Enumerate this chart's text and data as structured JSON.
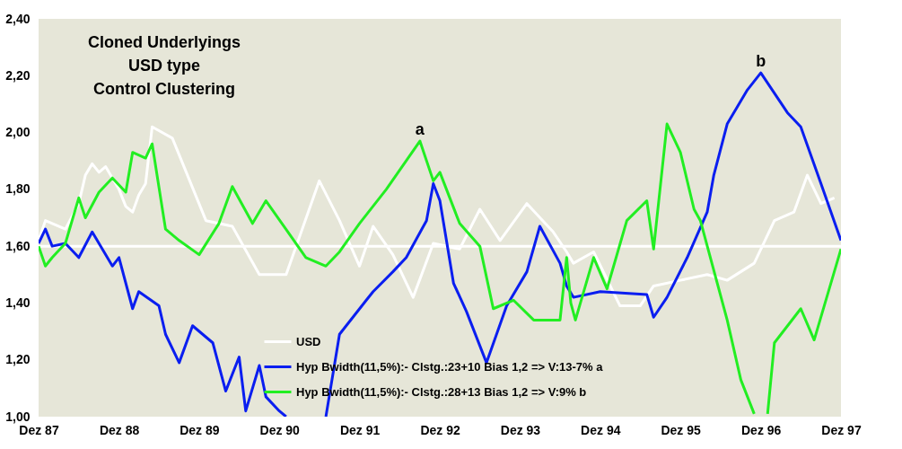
{
  "chart_data": {
    "type": "line",
    "title": "Cloned Underlyings\nUSD type\nControl Clustering",
    "xlim": [
      "1987-12",
      "1997-12"
    ],
    "xticks": [
      {
        "value": "1987-12",
        "label": "Dez 87"
      },
      {
        "value": "1988-12",
        "label": "Dez 88"
      },
      {
        "value": "1989-12",
        "label": "Dez 89"
      },
      {
        "value": "1990-12",
        "label": "Dez 90"
      },
      {
        "value": "1991-12",
        "label": "Dez 91"
      },
      {
        "value": "1992-12",
        "label": "Dez 92"
      },
      {
        "value": "1993-12",
        "label": "Dez 93"
      },
      {
        "value": "1994-12",
        "label": "Dez 94"
      },
      {
        "value": "1995-12",
        "label": "Dez 95"
      },
      {
        "value": "1996-12",
        "label": "Dez 96"
      },
      {
        "value": "1997-12",
        "label": "Dez 97"
      }
    ],
    "ylim": [
      1.0,
      2.4
    ],
    "yticks": [
      {
        "value": 1.0,
        "label": "1,00"
      },
      {
        "value": 1.2,
        "label": "1,20"
      },
      {
        "value": 1.4,
        "label": "1,40"
      },
      {
        "value": 1.6,
        "label": "1,60"
      },
      {
        "value": 1.8,
        "label": "1,80"
      },
      {
        "value": 2.0,
        "label": "2,00"
      },
      {
        "value": 2.2,
        "label": "2,20"
      },
      {
        "value": 2.4,
        "label": "2,40"
      }
    ],
    "grid": false,
    "legend": "bottom",
    "line_style": "solid",
    "marker": "none",
    "ref_lines": [
      {
        "axis": "y",
        "value": 1.6,
        "color": "#ffffff"
      }
    ],
    "annotations": [
      {
        "text": "a",
        "x": "1992-09",
        "y": 1.97
      },
      {
        "text": "b",
        "x": "1996-12",
        "y": 2.21
      }
    ],
    "series": [
      {
        "name": "USD",
        "color": "#ffffff",
        "x": [
          "1987-12",
          "1988-01",
          "1988-04",
          "1988-06",
          "1988-07",
          "1988-08",
          "1988-09",
          "1988-10",
          "1988-12",
          "1989-01",
          "1989-02",
          "1989-03",
          "1989-04",
          "1989-05",
          "1989-08",
          "1990-01",
          "1990-05",
          "1990-09",
          "1990-12",
          "1991-01",
          "1991-06",
          "1991-09",
          "1991-12",
          "1992-02",
          "1992-05",
          "1992-08",
          "1992-11",
          "1993-03",
          "1993-06",
          "1993-09",
          "1994-01",
          "1994-05",
          "1994-07",
          "1994-08",
          "1994-11",
          "1995-03",
          "1995-06",
          "1995-08",
          "1995-12",
          "1996-04",
          "1996-07",
          "1996-11",
          "1997-02",
          "1997-05",
          "1997-07",
          "1997-09",
          "1997-11"
        ],
        "values": [
          1.62,
          1.69,
          1.66,
          1.75,
          1.85,
          1.89,
          1.86,
          1.88,
          1.8,
          1.74,
          1.72,
          1.78,
          1.82,
          2.02,
          1.98,
          1.69,
          1.67,
          1.5,
          1.5,
          1.5,
          1.83,
          1.69,
          1.53,
          1.67,
          1.57,
          1.42,
          1.61,
          1.59,
          1.73,
          1.62,
          1.75,
          1.65,
          1.58,
          1.54,
          1.58,
          1.39,
          1.39,
          1.46,
          1.48,
          1.5,
          1.48,
          1.54,
          1.69,
          1.72,
          1.85,
          1.75,
          1.77
        ]
      },
      {
        "name": "Hyp Bwidth(11,5%):- Clstg.:23+10 Bias 1,2 => V:13-7% a",
        "color": "#0a1ef0",
        "x": [
          "1987-12",
          "1988-01",
          "1988-02",
          "1988-04",
          "1988-06",
          "1988-08",
          "1988-11",
          "1988-12",
          "1989-02",
          "1989-03",
          "1989-06",
          "1989-07",
          "1989-09",
          "1989-11",
          "1990-02",
          "1990-04",
          "1990-06",
          "1990-07",
          "1990-09",
          "1990-10",
          "1990-12",
          "1991-01",
          "1991-04",
          "1991-07",
          "1991-09",
          "1992-01",
          "1992-02",
          "1992-05",
          "1992-07",
          "1992-10",
          "1992-11",
          "1992-12",
          "1993-02",
          "1993-04",
          "1993-07",
          "1993-10",
          "1994-01",
          "1994-03",
          "1994-06",
          "1994-07",
          "1994-08",
          "1994-12",
          "1995-07",
          "1995-08",
          "1995-10",
          "1996-01",
          "1996-04",
          "1996-05",
          "1996-07",
          "1996-10",
          "1996-12",
          "1997-04",
          "1997-06",
          "1997-09",
          "1997-12"
        ],
        "values": [
          1.61,
          1.66,
          1.6,
          1.61,
          1.56,
          1.65,
          1.53,
          1.56,
          1.38,
          1.44,
          1.39,
          1.29,
          1.19,
          1.32,
          1.26,
          1.09,
          1.21,
          1.02,
          1.18,
          1.07,
          1.02,
          1.0,
          null,
          1.0,
          1.29,
          1.41,
          1.44,
          1.51,
          1.56,
          1.69,
          1.82,
          1.76,
          1.47,
          1.37,
          1.19,
          1.39,
          1.51,
          1.67,
          1.54,
          1.46,
          1.42,
          1.44,
          1.43,
          1.35,
          1.42,
          1.56,
          1.72,
          1.85,
          2.03,
          2.15,
          2.21,
          2.07,
          2.02,
          1.82,
          1.62
        ]
      },
      {
        "name": "Hyp Bwidth(11,5%):- Clstg.:28+13 Bias 1,2 => V:9% b",
        "color": "#22ee22",
        "x": [
          "1987-12",
          "1988-01",
          "1988-02",
          "1988-04",
          "1988-06",
          "1988-07",
          "1988-09",
          "1988-11",
          "1989-01",
          "1989-02",
          "1989-04",
          "1989-05",
          "1989-07",
          "1989-09",
          "1989-12",
          "1990-03",
          "1990-05",
          "1990-08",
          "1990-10",
          "1991-04",
          "1991-07",
          "1991-09",
          "1991-12",
          "1992-04",
          "1992-09",
          "1992-11",
          "1992-12",
          "1993-03",
          "1993-06",
          "1993-08",
          "1993-11",
          "1994-02",
          "1994-06",
          "1994-07-01",
          "1994-07-20",
          "1994-08-10",
          "1994-11",
          "1995-01",
          "1995-04",
          "1995-07",
          "1995-08",
          "1995-10",
          "1995-12",
          "1996-02",
          "1996-03",
          "1996-07",
          "1996-09",
          "1996-11",
          "1996-12",
          "1997-01",
          "1997-02",
          "1997-06",
          "1997-08",
          "1997-12"
        ],
        "values": [
          1.6,
          1.53,
          1.56,
          1.61,
          1.77,
          1.7,
          1.79,
          1.84,
          1.79,
          1.93,
          1.91,
          1.96,
          1.66,
          1.62,
          1.57,
          1.68,
          1.81,
          1.68,
          1.76,
          1.56,
          1.53,
          1.58,
          1.68,
          1.8,
          1.97,
          1.83,
          1.86,
          1.68,
          1.6,
          1.38,
          1.41,
          1.34,
          1.34,
          1.56,
          1.4,
          1.34,
          1.56,
          1.45,
          1.69,
          1.76,
          1.59,
          2.03,
          1.93,
          1.73,
          1.69,
          1.34,
          1.13,
          1.01,
          null,
          1.01,
          1.26,
          1.38,
          1.27,
          1.59
        ]
      }
    ]
  }
}
